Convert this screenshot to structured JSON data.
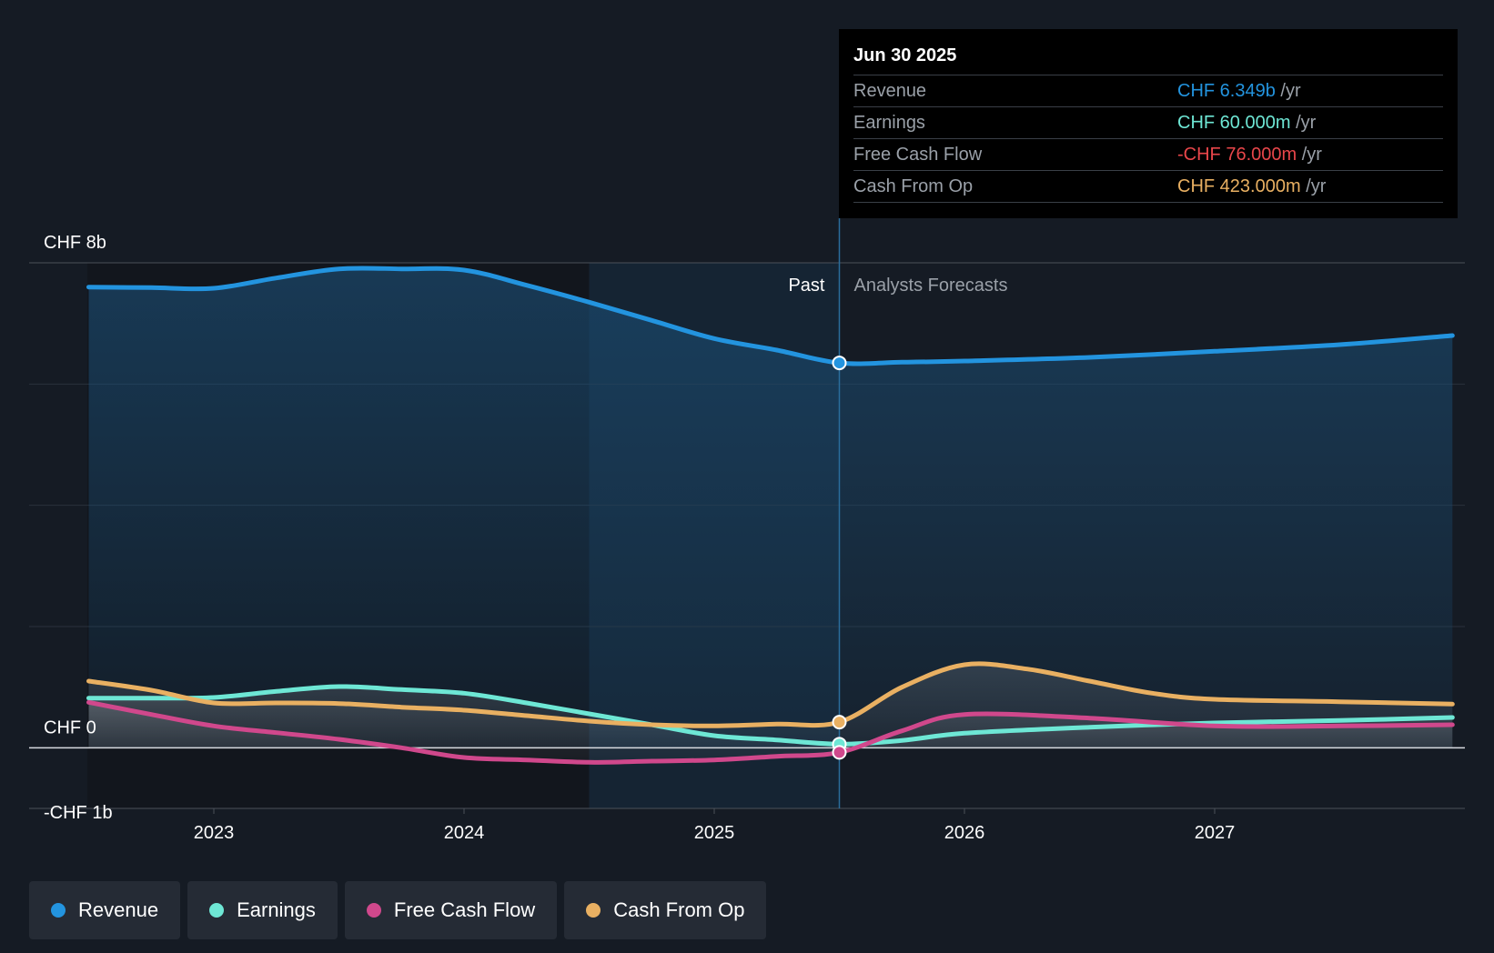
{
  "colors": {
    "revenue": "#2394df",
    "earnings": "#6ee7d5",
    "free_cash_flow": "#d0488c",
    "cash_from_op": "#e9b062",
    "negative": "#e8464a"
  },
  "tooltip": {
    "date": "Jun 30 2025",
    "rows": [
      {
        "label": "Revenue",
        "value": "CHF 6.349b",
        "unit": "/yr"
      },
      {
        "label": "Earnings",
        "value": "CHF 60.000m",
        "unit": "/yr"
      },
      {
        "label": "Free Cash Flow",
        "value": "-CHF 76.000m",
        "unit": "/yr"
      },
      {
        "label": "Cash From Op",
        "value": "CHF 423.000m",
        "unit": "/yr"
      }
    ]
  },
  "legend": [
    {
      "label": "Revenue",
      "color": "#2394df"
    },
    {
      "label": "Earnings",
      "color": "#6ee7d5"
    },
    {
      "label": "Free Cash Flow",
      "color": "#d0488c"
    },
    {
      "label": "Cash From Op",
      "color": "#e9b062"
    }
  ],
  "chart_data": {
    "type": "line",
    "title": "",
    "xlabel": "",
    "ylabel": "",
    "x_range": [
      2022.5,
      2027.95
    ],
    "ylim": [
      -1,
      8
    ],
    "y_ticks": [
      {
        "value": 8,
        "label": "CHF 8b"
      },
      {
        "value": 0,
        "label": "CHF 0"
      },
      {
        "value": -1,
        "label": "-CHF 1b"
      }
    ],
    "x_ticks": [
      {
        "value": 2023,
        "label": "2023"
      },
      {
        "value": 2024,
        "label": "2024"
      },
      {
        "value": 2025,
        "label": "2025"
      },
      {
        "value": 2026,
        "label": "2026"
      },
      {
        "value": 2027,
        "label": "2027"
      }
    ],
    "past_label": "Past",
    "forecast_label": "Analysts Forecasts",
    "past_end_x": 2025.5,
    "shade_start_x": 2024.5,
    "highlight_x": 2025.5,
    "series": [
      {
        "name": "Revenue",
        "key": "revenue",
        "points": [
          [
            2022.5,
            7.6
          ],
          [
            2022.75,
            7.59
          ],
          [
            2023,
            7.58
          ],
          [
            2023.25,
            7.75
          ],
          [
            2023.5,
            7.9
          ],
          [
            2023.75,
            7.9
          ],
          [
            2024,
            7.88
          ],
          [
            2024.25,
            7.63
          ],
          [
            2024.5,
            7.35
          ],
          [
            2024.75,
            7.05
          ],
          [
            2025,
            6.75
          ],
          [
            2025.25,
            6.56
          ],
          [
            2025.5,
            6.349
          ],
          [
            2025.75,
            6.36
          ],
          [
            2026,
            6.38
          ],
          [
            2026.5,
            6.44
          ],
          [
            2027,
            6.54
          ],
          [
            2027.5,
            6.65
          ],
          [
            2027.95,
            6.8
          ]
        ]
      },
      {
        "name": "Earnings",
        "key": "earnings",
        "points": [
          [
            2022.5,
            0.82
          ],
          [
            2022.75,
            0.82
          ],
          [
            2023,
            0.83
          ],
          [
            2023.25,
            0.93
          ],
          [
            2023.5,
            1.01
          ],
          [
            2023.75,
            0.96
          ],
          [
            2024,
            0.9
          ],
          [
            2024.25,
            0.74
          ],
          [
            2024.5,
            0.56
          ],
          [
            2024.75,
            0.38
          ],
          [
            2025,
            0.2
          ],
          [
            2025.25,
            0.13
          ],
          [
            2025.5,
            0.06
          ],
          [
            2025.75,
            0.12
          ],
          [
            2026,
            0.24
          ],
          [
            2026.5,
            0.34
          ],
          [
            2027,
            0.41
          ],
          [
            2027.5,
            0.45
          ],
          [
            2027.95,
            0.5
          ]
        ]
      },
      {
        "name": "Free Cash Flow",
        "key": "free_cash_flow",
        "points": [
          [
            2022.5,
            0.75
          ],
          [
            2022.75,
            0.55
          ],
          [
            2023,
            0.36
          ],
          [
            2023.25,
            0.25
          ],
          [
            2023.5,
            0.14
          ],
          [
            2023.75,
            0.0
          ],
          [
            2024,
            -0.16
          ],
          [
            2024.25,
            -0.2
          ],
          [
            2024.5,
            -0.24
          ],
          [
            2024.75,
            -0.22
          ],
          [
            2025,
            -0.2
          ],
          [
            2025.25,
            -0.14
          ],
          [
            2025.5,
            -0.076
          ],
          [
            2025.75,
            0.28
          ],
          [
            2026,
            0.55
          ],
          [
            2026.5,
            0.49
          ],
          [
            2027,
            0.36
          ],
          [
            2027.5,
            0.36
          ],
          [
            2027.95,
            0.38
          ]
        ]
      },
      {
        "name": "Cash From Op",
        "key": "cash_from_op",
        "points": [
          [
            2022.5,
            1.1
          ],
          [
            2022.75,
            0.95
          ],
          [
            2023,
            0.74
          ],
          [
            2023.25,
            0.74
          ],
          [
            2023.5,
            0.73
          ],
          [
            2023.75,
            0.67
          ],
          [
            2024,
            0.62
          ],
          [
            2024.25,
            0.53
          ],
          [
            2024.5,
            0.44
          ],
          [
            2024.75,
            0.38
          ],
          [
            2025,
            0.36
          ],
          [
            2025.25,
            0.39
          ],
          [
            2025.5,
            0.423
          ],
          [
            2025.75,
            1.0
          ],
          [
            2026,
            1.37
          ],
          [
            2026.25,
            1.3
          ],
          [
            2026.5,
            1.1
          ],
          [
            2026.75,
            0.9
          ],
          [
            2027,
            0.8
          ],
          [
            2027.5,
            0.76
          ],
          [
            2027.95,
            0.72
          ]
        ]
      }
    ]
  }
}
